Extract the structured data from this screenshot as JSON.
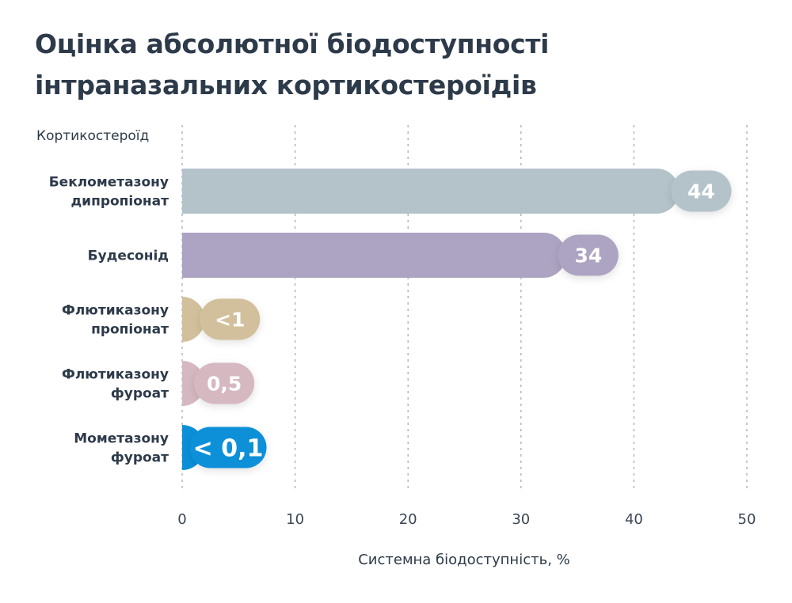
{
  "chart_data": {
    "type": "bar",
    "orientation": "horizontal",
    "title_lines": [
      "Оцінка абсолютної біодоступності",
      "інтраназальних кортикостероїдів"
    ],
    "ylabel": "Кортикостероїд",
    "xlabel": "Системна біодоступність, %",
    "xlim": [
      0,
      50
    ],
    "xticks": [
      "0",
      "10",
      "20",
      "30",
      "40",
      "50"
    ],
    "grid": "vertical-dashed",
    "bars": [
      {
        "category_lines": [
          "Беклометазону",
          "дипропіонат"
        ],
        "value": 44,
        "label": "44",
        "color": "#b3c3c9"
      },
      {
        "category_lines": [
          "Будесонід"
        ],
        "value": 34,
        "label": "34",
        "color": "#ada3c2"
      },
      {
        "category_lines": [
          "Флютиказону",
          "пропіонат"
        ],
        "value": 1,
        "label": "<1",
        "color": "#d1c09b"
      },
      {
        "category_lines": [
          "Флютиказону",
          "фуроат"
        ],
        "value": 0.5,
        "label": "0,5",
        "color": "#d6b8c1"
      },
      {
        "category_lines": [
          "Мометазону",
          "фуроат"
        ],
        "value": 0.1,
        "label": "< 0,1",
        "color": "#0a90d8"
      }
    ]
  }
}
